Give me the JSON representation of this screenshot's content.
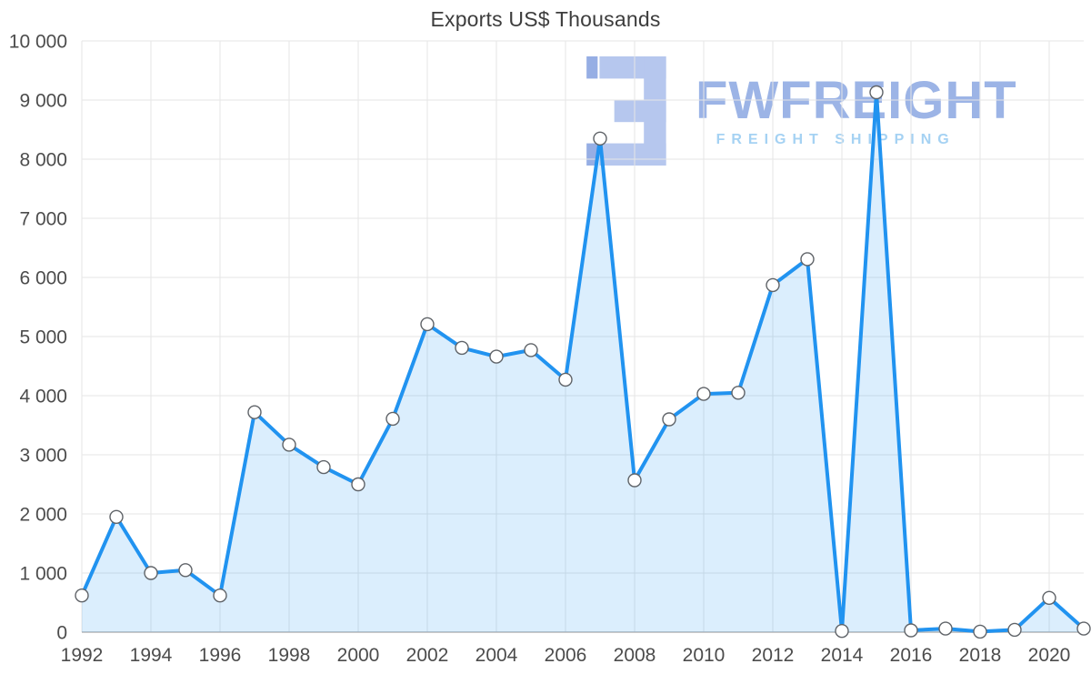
{
  "page": {
    "title": "Exports US$ Thousands"
  },
  "watermark": {
    "brand": "FWFREIGHT",
    "tagline": "FREIGHT SHIPPING",
    "logo_color": "#b6c7ee",
    "logo_accent": "#96aee4",
    "brand_color": "#9cb4e6",
    "tagline_color": "#a5d2f3"
  },
  "chart_data": {
    "type": "area",
    "title": "Exports US$ Thousands",
    "x": [
      1992,
      1993,
      1994,
      1995,
      1996,
      1997,
      1998,
      1999,
      2000,
      2001,
      2002,
      2003,
      2004,
      2005,
      2006,
      2007,
      2008,
      2009,
      2010,
      2011,
      2012,
      2013,
      2014,
      2015,
      2016,
      2017,
      2018,
      2019,
      2020,
      2021
    ],
    "values": [
      620,
      1950,
      1000,
      1050,
      620,
      3720,
      3170,
      2790,
      2500,
      3610,
      5210,
      4810,
      4660,
      4770,
      4270,
      8350,
      2570,
      3600,
      4030,
      4050,
      5870,
      6310,
      20,
      9130,
      30,
      60,
      10,
      40,
      580,
      60
    ],
    "xlim": [
      1992,
      2021
    ],
    "ylim": [
      0,
      10000
    ],
    "x_tick_years": [
      1992,
      1994,
      1996,
      1998,
      2000,
      2002,
      2004,
      2006,
      2008,
      2010,
      2012,
      2014,
      2016,
      2018,
      2020
    ],
    "x_tick_labels": [
      "1992",
      "1994",
      "1996",
      "1998",
      "2000",
      "2002",
      "2004",
      "2006",
      "2008",
      "2010",
      "2012",
      "2014",
      "2016",
      "2018",
      "2020"
    ],
    "y_ticks": [
      0,
      1000,
      2000,
      3000,
      4000,
      5000,
      6000,
      7000,
      8000,
      9000,
      10000
    ],
    "y_tick_labels": [
      "0",
      "1 000",
      "2 000",
      "3 000",
      "4 000",
      "5 000",
      "6 000",
      "7 000",
      "8 000",
      "9 000",
      "10 000"
    ],
    "grid": true,
    "legend": "none",
    "line_color": "#2193f0",
    "fill_opacity": 0.16,
    "marker_fill": "#ffffff",
    "marker_stroke": "#5f6368",
    "grid_color": "#e5e5e5",
    "axis_color": "#b5b5b5",
    "label_color": "#4c4c4c"
  }
}
